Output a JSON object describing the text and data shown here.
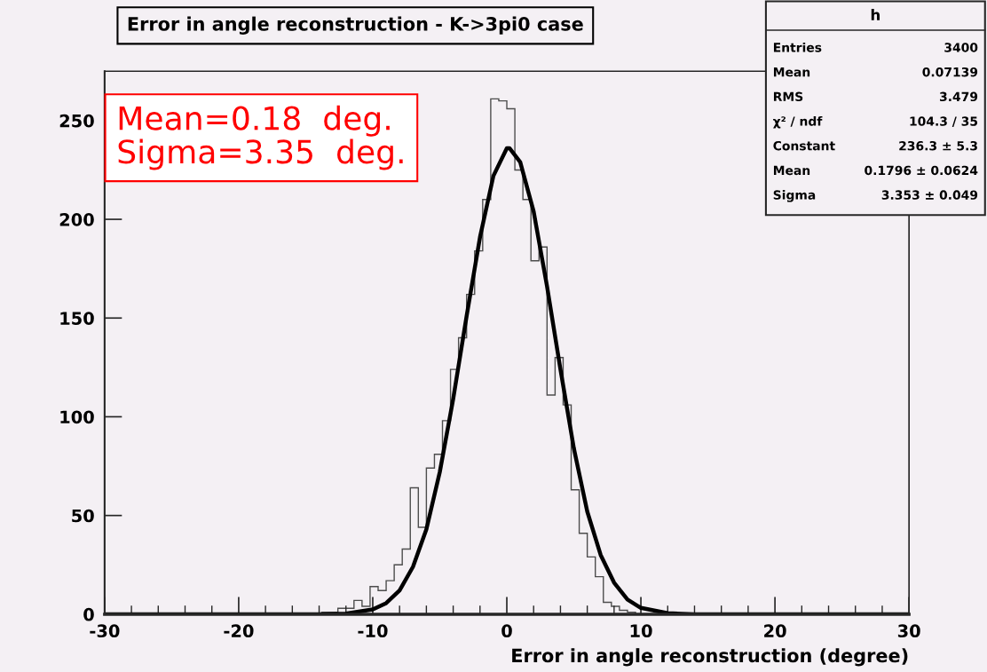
{
  "chart_data": {
    "type": "histogram",
    "title": "Error in angle reconstruction - K->3pi0 case",
    "xlabel": "Error in angle reconstruction (degree)",
    "xlim": [
      -30,
      30
    ],
    "xticks": [
      -30,
      -20,
      -10,
      0,
      10,
      20,
      30
    ],
    "ylim": [
      0,
      275
    ],
    "yticks": [
      0,
      50,
      100,
      150,
      200,
      250
    ],
    "grid": false,
    "legend": false,
    "color": "#4d4d4d",
    "bins": [
      -13.8,
      -13.2,
      -12.6,
      -12.0,
      -11.4,
      -10.8,
      -10.2,
      -9.6,
      -9.0,
      -8.4,
      -7.8,
      -7.2,
      -6.6,
      -6.0,
      -5.4,
      -4.8,
      -4.2,
      -3.6,
      -3.0,
      -2.4,
      -1.8,
      -1.2,
      -0.6,
      0.0,
      0.6,
      1.2,
      1.8,
      2.4,
      3.0,
      3.6,
      4.2,
      4.8,
      5.4,
      6.0,
      6.6,
      7.2,
      7.8,
      8.4,
      9.0,
      9.6,
      10.2
    ],
    "values": [
      1,
      1,
      3,
      3,
      7,
      4,
      14,
      12,
      17,
      25,
      33,
      64,
      44,
      74,
      81,
      98,
      124,
      140,
      162,
      184,
      210,
      261,
      260,
      256,
      225,
      210,
      179,
      186,
      111,
      130,
      106,
      63,
      41,
      29,
      19,
      6,
      4,
      2,
      1,
      0
    ],
    "series": [
      {
        "type": "line",
        "color": "#000000",
        "x": [
          -30,
          -14,
          -12,
          -10,
          -9,
          -8,
          -7,
          -6,
          -5,
          -4,
          -3,
          -2,
          -1,
          0,
          0.2,
          1,
          2,
          3,
          4,
          5,
          6,
          7,
          8,
          9,
          10,
          12,
          14,
          30
        ],
        "values": [
          0,
          0,
          0.3,
          2.4,
          5.6,
          12,
          24,
          43,
          72,
          109,
          151,
          191,
          222,
          236,
          236,
          229,
          204,
          166,
          124,
          84,
          52,
          30,
          16,
          7.4,
          3.2,
          0.5,
          0,
          0
        ]
      }
    ],
    "annotations": [
      "Mean=0.18  deg.",
      "Sigma=3.35  deg.",
      "h",
      "Entries",
      "3400",
      "Mean",
      "0.07139",
      "RMS",
      "3.479",
      "χ² / ndf",
      "104.3 / 35",
      "Constant",
      "236.3 ± 5.3",
      "Mean",
      "0.1796 ± 0.0624",
      "Sigma",
      "3.353 ± 0.049"
    ]
  }
}
